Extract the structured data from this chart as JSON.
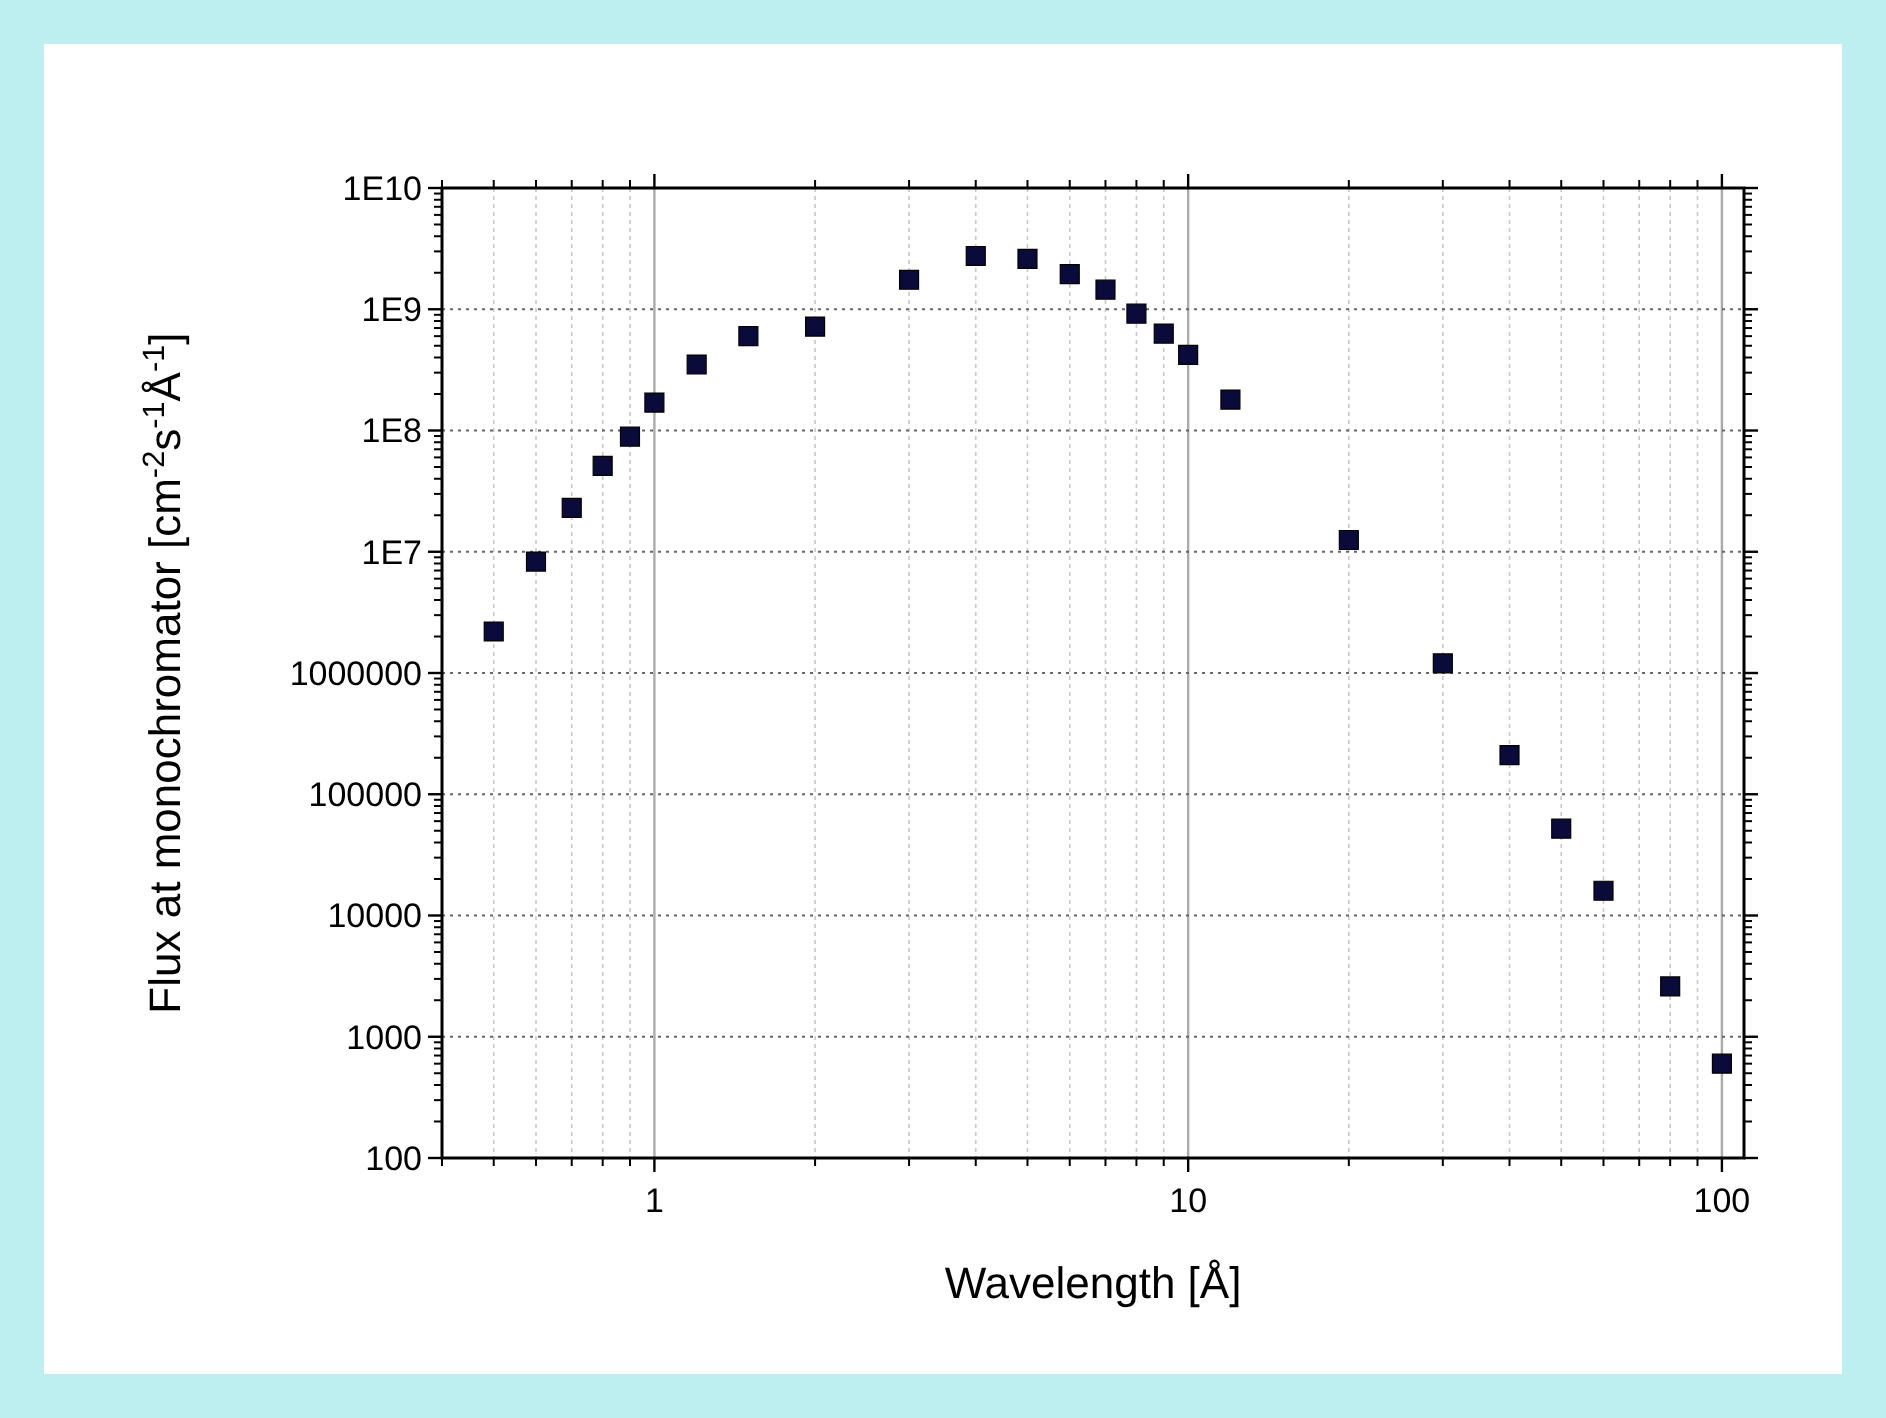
{
  "chart_data": {
    "type": "scatter",
    "xlabel": "Wavelength [Å]",
    "ylabel": "Flux at monochromator [cm$^{-2}$s$^{-1}$Å$^{-1}$]",
    "log": "xy",
    "grid": true,
    "marker": "square",
    "xlim": [
      0.4,
      110
    ],
    "xticks": [
      1,
      10,
      100
    ],
    "ylim": [
      100,
      10000000000.0
    ],
    "yticks": [
      100,
      1000,
      10000,
      100000,
      1000000,
      {
        "value": 10000000.0,
        "label": "1E7"
      },
      {
        "value": 100000000.0,
        "label": "1E8"
      },
      {
        "value": 1000000000.0,
        "label": "1E9"
      },
      {
        "value": 10000000000.0,
        "label": "1E10"
      }
    ],
    "x": [
      0.5,
      0.6,
      0.7,
      0.8,
      0.9,
      1,
      1.2,
      1.5,
      2,
      3,
      4,
      5,
      6,
      7,
      8,
      9,
      10,
      12,
      20,
      30,
      40,
      50,
      60,
      80,
      100
    ],
    "series": [
      {
        "color": "#0b0b3b",
        "values": [
          2200000,
          8300000,
          23000000,
          51000000,
          89000000,
          170000000,
          350000000,
          600000000,
          720000000,
          1750000000,
          2750000000,
          2600000000,
          1950000000,
          1450000000,
          920000000,
          630000000,
          420000000,
          180000000,
          12500000,
          1200000,
          210000,
          52000,
          16000,
          2600,
          600
        ]
      }
    ]
  }
}
